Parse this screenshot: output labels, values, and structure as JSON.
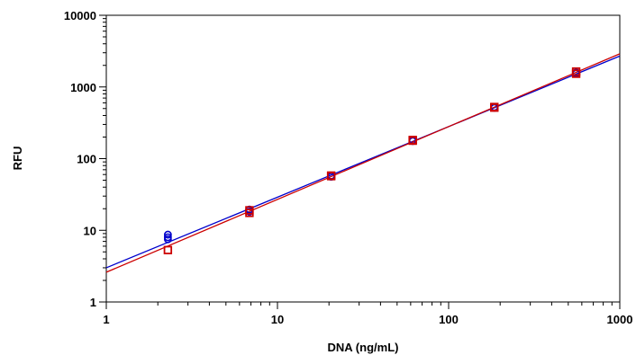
{
  "chart_data": {
    "type": "scatter",
    "xlabel": "DNA (ng/mL)",
    "ylabel": "RFU",
    "xscale": "log",
    "yscale": "log",
    "xlim": [
      1,
      1000
    ],
    "ylim": [
      1,
      10000
    ],
    "x_ticks": [
      1,
      10,
      100,
      1000
    ],
    "y_ticks": [
      1,
      10,
      100,
      1000,
      10000
    ],
    "x_tick_labels": [
      "1",
      "10",
      "100",
      "1000"
    ],
    "y_tick_labels": [
      "1",
      "10",
      "100",
      "1000",
      "10000"
    ],
    "grid": false,
    "legend": "none",
    "series": [
      {
        "color": "#0000cc",
        "marker": "circle",
        "points": [
          {
            "x": 2.29,
            "y": 8.7
          },
          {
            "x": 2.29,
            "y": 8.0
          },
          {
            "x": 2.29,
            "y": 7.5
          },
          {
            "x": 6.86,
            "y": 19.5
          },
          {
            "x": 6.86,
            "y": 18.2
          },
          {
            "x": 20.6,
            "y": 58
          },
          {
            "x": 20.6,
            "y": 56
          },
          {
            "x": 61.7,
            "y": 182
          },
          {
            "x": 61.7,
            "y": 176
          },
          {
            "x": 185,
            "y": 525
          },
          {
            "x": 185,
            "y": 510
          },
          {
            "x": 556,
            "y": 1590
          },
          {
            "x": 556,
            "y": 1540
          }
        ],
        "fit": {
          "x": [
            1,
            1000
          ],
          "y": [
            3.0,
            2700
          ]
        }
      },
      {
        "color": "#cc0000",
        "marker": "square",
        "points": [
          {
            "x": 2.29,
            "y": 5.3
          },
          {
            "x": 6.86,
            "y": 19.0
          },
          {
            "x": 6.86,
            "y": 17.5
          },
          {
            "x": 20.6,
            "y": 58
          },
          {
            "x": 20.6,
            "y": 57
          },
          {
            "x": 61.7,
            "y": 182
          },
          {
            "x": 61.7,
            "y": 178
          },
          {
            "x": 185,
            "y": 525
          },
          {
            "x": 185,
            "y": 515
          },
          {
            "x": 556,
            "y": 1640
          },
          {
            "x": 556,
            "y": 1530
          }
        ],
        "fit": {
          "x": [
            1,
            1000
          ],
          "y": [
            2.6,
            2900
          ]
        }
      }
    ]
  }
}
